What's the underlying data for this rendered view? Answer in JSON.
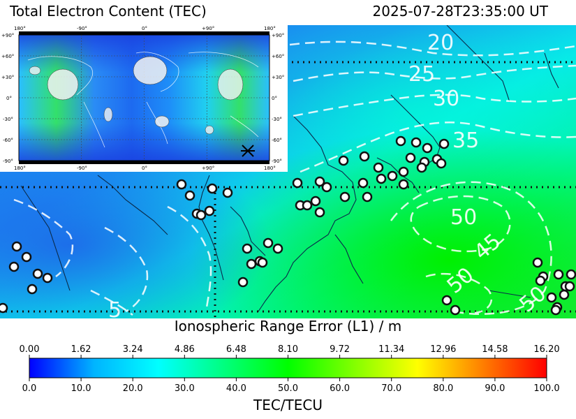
{
  "header": {
    "title": "Total Electron Content (TEC)",
    "timestamp": "2025-07-28T23:35:00 UT"
  },
  "map": {
    "contour_labels": [
      "20",
      "25",
      "30",
      "35",
      "50",
      "45",
      "50",
      "50",
      "5"
    ]
  },
  "inset": {
    "lon_ticks": [
      "180°",
      "-90°",
      "0°",
      "+90°",
      "180°"
    ],
    "lat_ticks_left": [
      "+90°",
      "+60°",
      "+30°",
      "0°",
      "-30°",
      "-60°",
      "-90°"
    ],
    "lat_ticks_right": [
      "+90°",
      "+60°",
      "+30°",
      "0°",
      "-30°",
      "-60°",
      "-90°"
    ]
  },
  "colorbar": {
    "top_title": "Ionospheric Range Error (L1) / m",
    "top_ticks": [
      "0.00",
      "1.62",
      "3.24",
      "4.86",
      "6.48",
      "8.10",
      "9.72",
      "11.34",
      "12.96",
      "14.58",
      "16.20"
    ],
    "bottom_ticks": [
      "0.0",
      "10.0",
      "20.0",
      "30.0",
      "40.0",
      "50.0",
      "60.0",
      "70.0",
      "80.0",
      "90.0",
      "100.0"
    ],
    "unit_label": "TEC/TECU",
    "colors": [
      "#0000ff",
      "#00b4ff",
      "#00ffff",
      "#00ff80",
      "#00ff00",
      "#80ff00",
      "#ffff00",
      "#ff8000",
      "#ff0000"
    ]
  }
}
